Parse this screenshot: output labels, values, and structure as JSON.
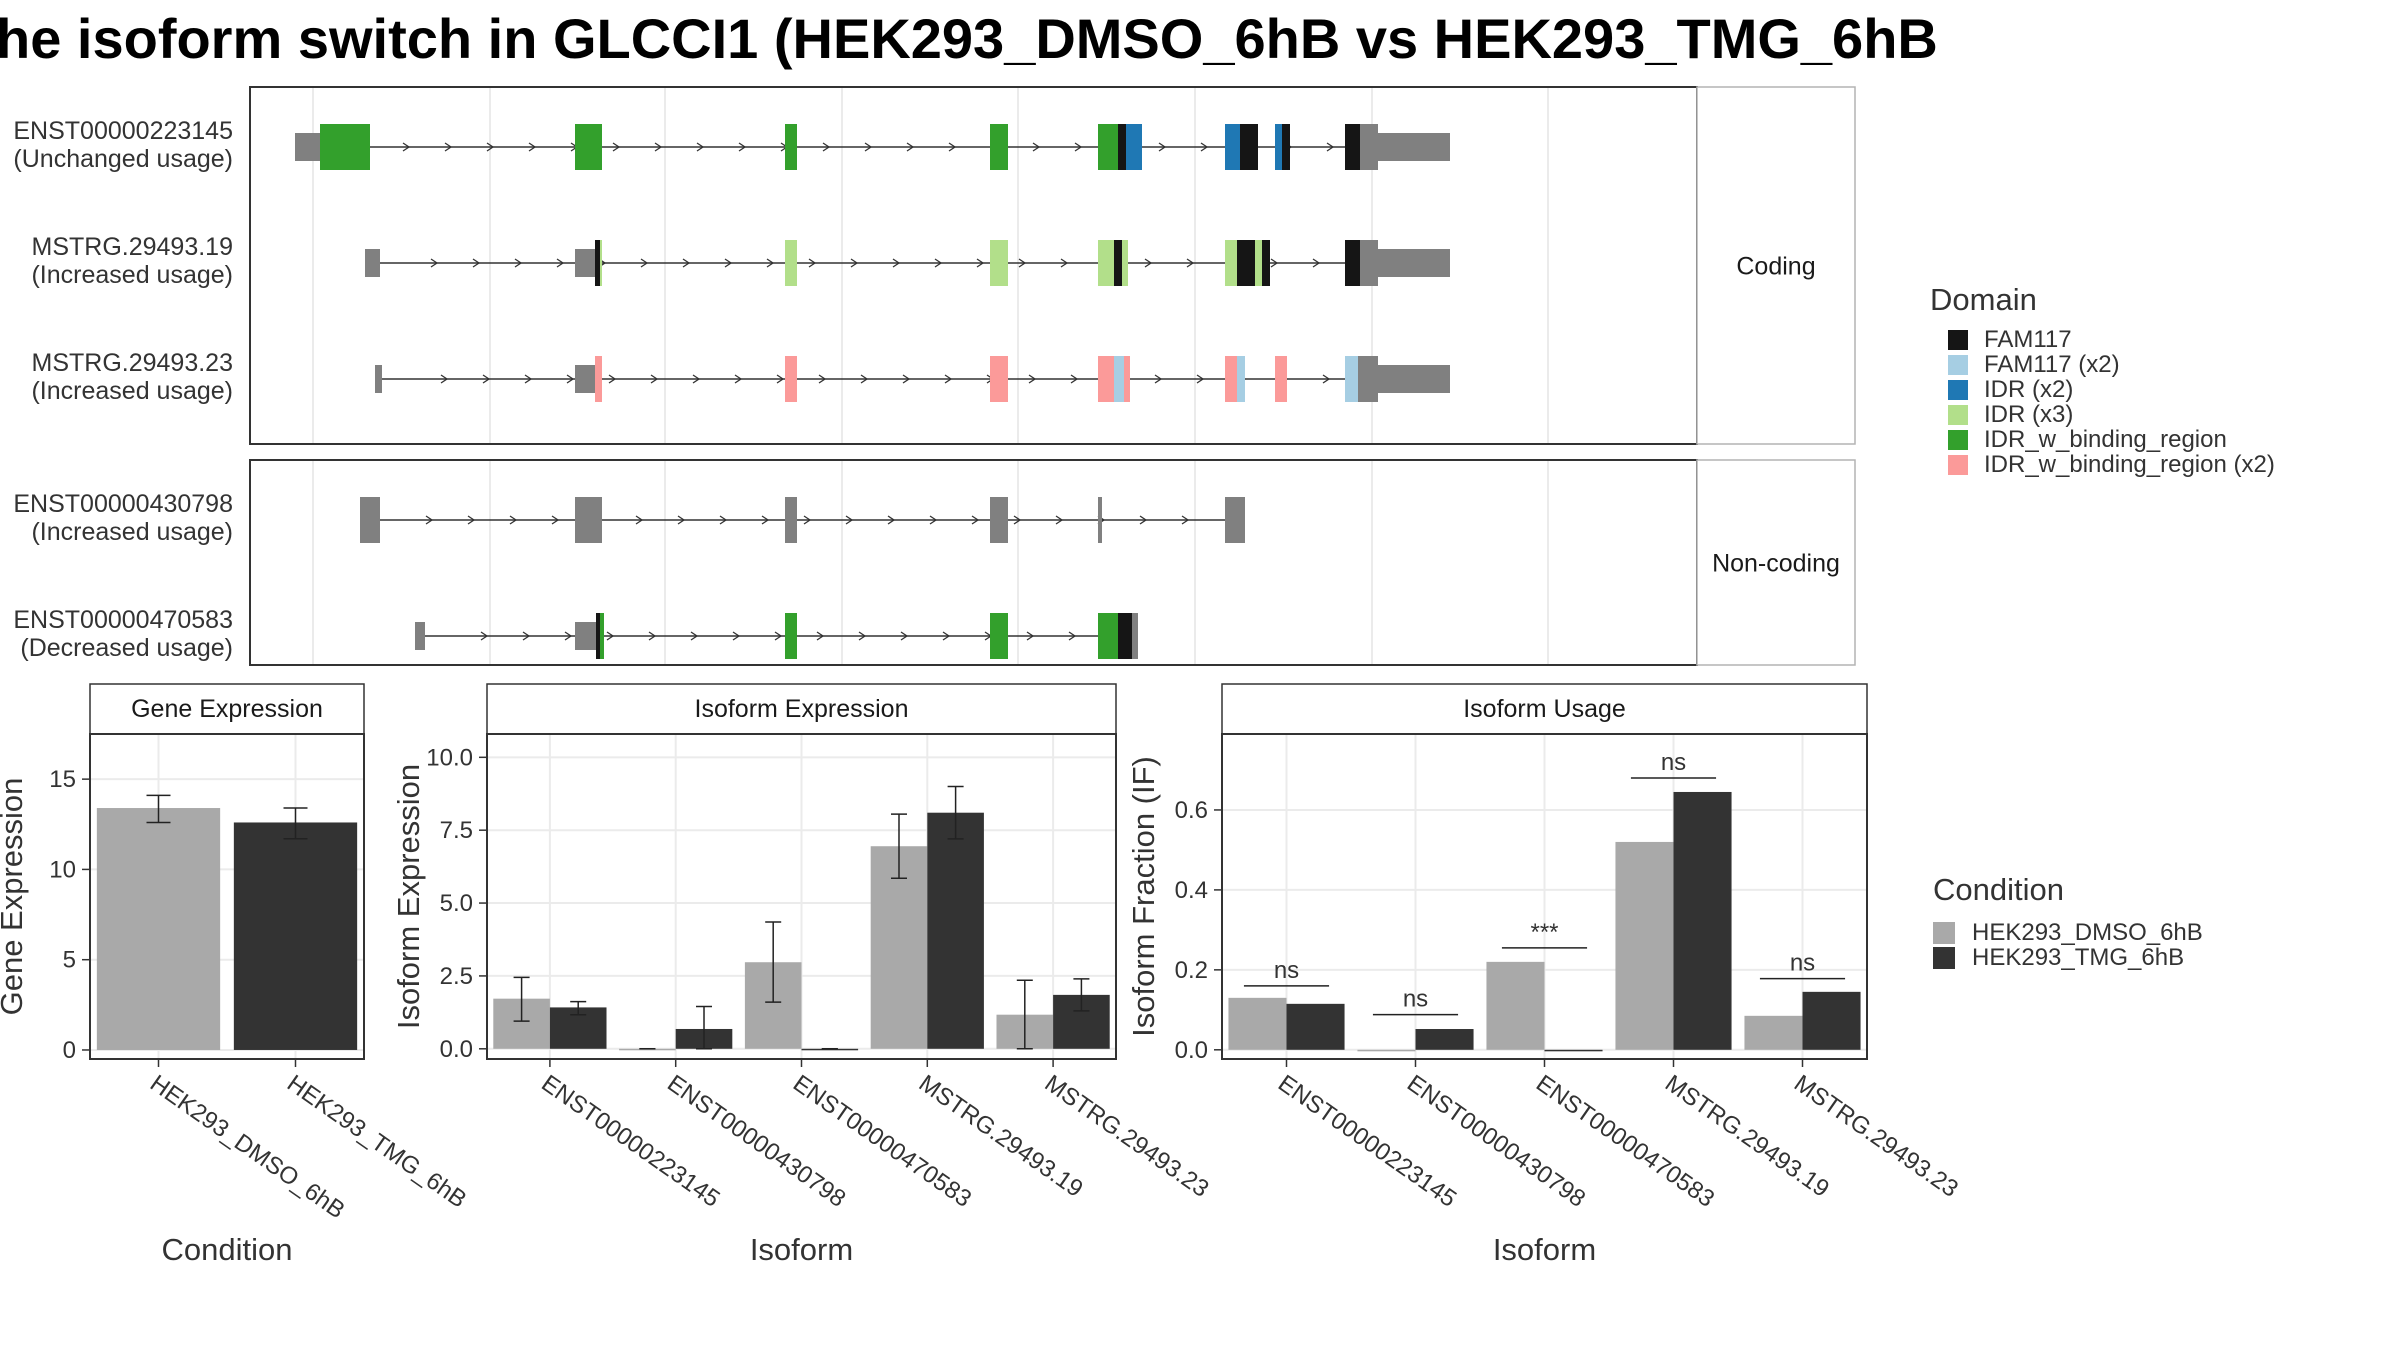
{
  "title": "he isoform switch in GLCCI1 (HEK293_DMSO_6hB vs HEK293_TMG_6hB",
  "colors": {
    "utr": "#808080",
    "FAM117": "#151515",
    "FAM117 (x2)": "#a6cee3",
    "IDR (x2)": "#1f78b4",
    "IDR (x3)": "#b2df8a",
    "IDR_w_binding_region": "#33a02c",
    "IDR_w_binding_region (x2)": "#fb9a99",
    "HEK293_DMSO_6hB": "#a9a9a9",
    "HEK293_TMG_6hB": "#333333",
    "panel_border": "#333333",
    "strip_fill": "#ffffff",
    "grid": "#ebebeb"
  },
  "chart_data": [
    {
      "type": "gene-structure",
      "facets": [
        {
          "strip": "Coding",
          "tracks": [
            {
              "label": [
                "ENST00000223145",
                "(Unchanged usage)"
              ],
              "span": [
                45,
                1000
              ],
              "exons": [
                {
                  "s": 45,
                  "e": 70,
                  "h": "s",
                  "c": "utr"
                },
                {
                  "s": 70,
                  "e": 120,
                  "h": "t",
                  "c": "IDR_w_binding_region"
                },
                {
                  "s": 325,
                  "e": 352,
                  "h": "t",
                  "c": "IDR_w_binding_region"
                },
                {
                  "s": 535,
                  "e": 547,
                  "h": "t",
                  "c": "IDR_w_binding_region"
                },
                {
                  "s": 740,
                  "e": 758,
                  "h": "t",
                  "c": "IDR_w_binding_region"
                },
                {
                  "s": 848,
                  "e": 868,
                  "h": "t",
                  "c": "IDR_w_binding_region"
                },
                {
                  "s": 868,
                  "e": 876,
                  "h": "t",
                  "c": "FAM117"
                },
                {
                  "s": 876,
                  "e": 892,
                  "h": "t",
                  "c": "IDR (x2)"
                },
                {
                  "s": 975,
                  "e": 990,
                  "h": "t",
                  "c": "IDR (x2)"
                },
                {
                  "s": 990,
                  "e": 1008,
                  "h": "t",
                  "c": "FAM117"
                },
                {
                  "s": 1025,
                  "e": 1032,
                  "h": "t",
                  "c": "IDR (x2)"
                },
                {
                  "s": 1032,
                  "e": 1040,
                  "h": "t",
                  "c": "FAM117"
                },
                {
                  "s": 1095,
                  "e": 1110,
                  "h": "t",
                  "c": "FAM117"
                },
                {
                  "s": 1110,
                  "e": 1128,
                  "h": "t",
                  "c": "utr"
                },
                {
                  "s": 1128,
                  "e": 1200,
                  "h": "s",
                  "c": "utr"
                }
              ]
            },
            {
              "label": [
                "MSTRG.29493.19",
                "(Increased usage)"
              ],
              "span": [
                115,
                1000
              ],
              "exons": [
                {
                  "s": 115,
                  "e": 130,
                  "h": "s",
                  "c": "utr"
                },
                {
                  "s": 325,
                  "e": 345,
                  "h": "s",
                  "c": "utr"
                },
                {
                  "s": 345,
                  "e": 350,
                  "h": "t",
                  "c": "FAM117"
                },
                {
                  "s": 350,
                  "e": 352,
                  "h": "t",
                  "c": "IDR (x3)"
                },
                {
                  "s": 535,
                  "e": 547,
                  "h": "t",
                  "c": "IDR (x3)"
                },
                {
                  "s": 740,
                  "e": 758,
                  "h": "t",
                  "c": "IDR (x3)"
                },
                {
                  "s": 848,
                  "e": 864,
                  "h": "t",
                  "c": "IDR (x3)"
                },
                {
                  "s": 864,
                  "e": 872,
                  "h": "t",
                  "c": "FAM117"
                },
                {
                  "s": 872,
                  "e": 878,
                  "h": "t",
                  "c": "IDR (x3)"
                },
                {
                  "s": 975,
                  "e": 987,
                  "h": "t",
                  "c": "IDR (x3)"
                },
                {
                  "s": 987,
                  "e": 1005,
                  "h": "t",
                  "c": "FAM117"
                },
                {
                  "s": 1005,
                  "e": 1012,
                  "h": "t",
                  "c": "IDR (x3)"
                },
                {
                  "s": 1012,
                  "e": 1020,
                  "h": "t",
                  "c": "FAM117"
                },
                {
                  "s": 1095,
                  "e": 1110,
                  "h": "t",
                  "c": "FAM117"
                },
                {
                  "s": 1110,
                  "e": 1128,
                  "h": "t",
                  "c": "utr"
                },
                {
                  "s": 1128,
                  "e": 1200,
                  "h": "s",
                  "c": "utr"
                }
              ]
            },
            {
              "label": [
                "MSTRG.29493.23",
                "(Increased usage)"
              ],
              "span": [
                125,
                1000
              ],
              "exons": [
                {
                  "s": 125,
                  "e": 132,
                  "h": "s",
                  "c": "utr"
                },
                {
                  "s": 325,
                  "e": 345,
                  "h": "s",
                  "c": "utr"
                },
                {
                  "s": 345,
                  "e": 352,
                  "h": "t",
                  "c": "IDR_w_binding_region (x2)"
                },
                {
                  "s": 535,
                  "e": 547,
                  "h": "t",
                  "c": "IDR_w_binding_region (x2)"
                },
                {
                  "s": 740,
                  "e": 758,
                  "h": "t",
                  "c": "IDR_w_binding_region (x2)"
                },
                {
                  "s": 848,
                  "e": 864,
                  "h": "t",
                  "c": "IDR_w_binding_region (x2)"
                },
                {
                  "s": 864,
                  "e": 874,
                  "h": "t",
                  "c": "FAM117 (x2)"
                },
                {
                  "s": 874,
                  "e": 880,
                  "h": "t",
                  "c": "IDR_w_binding_region (x2)"
                },
                {
                  "s": 1025,
                  "e": 1037,
                  "h": "t",
                  "c": "IDR_w_binding_region (x2)"
                },
                {
                  "s": 975,
                  "e": 987,
                  "h": "t",
                  "c": "IDR_w_binding_region (x2)"
                },
                {
                  "s": 987,
                  "e": 995,
                  "h": "t",
                  "c": "FAM117 (x2)"
                },
                {
                  "s": 1095,
                  "e": 1108,
                  "h": "t",
                  "c": "FAM117 (x2)"
                },
                {
                  "s": 1108,
                  "e": 1128,
                  "h": "t",
                  "c": "utr"
                },
                {
                  "s": 1128,
                  "e": 1200,
                  "h": "s",
                  "c": "utr"
                }
              ]
            }
          ]
        },
        {
          "strip": "Non-coding",
          "tracks": [
            {
              "label": [
                "ENST00000430798",
                "(Increased usage)"
              ],
              "span": [
                110,
                1000
              ],
              "exons": [
                {
                  "s": 110,
                  "e": 130,
                  "h": "t",
                  "c": "utr"
                },
                {
                  "s": 325,
                  "e": 352,
                  "h": "t",
                  "c": "utr"
                },
                {
                  "s": 535,
                  "e": 547,
                  "h": "t",
                  "c": "utr"
                },
                {
                  "s": 740,
                  "e": 758,
                  "h": "t",
                  "c": "utr"
                },
                {
                  "s": 848,
                  "e": 852,
                  "h": "t",
                  "c": "utr"
                },
                {
                  "s": 975,
                  "e": 995,
                  "h": "t",
                  "c": "utr"
                }
              ]
            },
            {
              "label": [
                "ENST00000470583",
                "(Decreased usage)"
              ],
              "span": [
                165,
                1000
              ],
              "exons": [
                {
                  "s": 165,
                  "e": 175,
                  "h": "s",
                  "c": "utr"
                },
                {
                  "s": 325,
                  "e": 346,
                  "h": "s",
                  "c": "utr"
                },
                {
                  "s": 346,
                  "e": 350,
                  "h": "t",
                  "c": "FAM117"
                },
                {
                  "s": 350,
                  "e": 354,
                  "h": "t",
                  "c": "IDR_w_binding_region"
                },
                {
                  "s": 535,
                  "e": 547,
                  "h": "t",
                  "c": "IDR_w_binding_region"
                },
                {
                  "s": 740,
                  "e": 758,
                  "h": "t",
                  "c": "IDR_w_binding_region"
                },
                {
                  "s": 848,
                  "e": 868,
                  "h": "t",
                  "c": "IDR_w_binding_region"
                },
                {
                  "s": 868,
                  "e": 882,
                  "h": "t",
                  "c": "FAM117"
                },
                {
                  "s": 882,
                  "e": 888,
                  "h": "t",
                  "c": "utr"
                }
              ]
            }
          ]
        }
      ],
      "legend": {
        "title": "Domain",
        "items": [
          "FAM117",
          "FAM117 (x2)",
          "IDR (x2)",
          "IDR (x3)",
          "IDR_w_binding_region",
          "IDR_w_binding_region (x2)"
        ]
      }
    },
    {
      "type": "bar",
      "strip": "Gene Expression",
      "xlabel": "Condition",
      "ylabel": "Gene Expression",
      "ylim": [
        -0.5,
        17.5
      ],
      "yticks": [
        0,
        5,
        10,
        15
      ],
      "categories": [
        "HEK293_DMSO_6hB",
        "HEK293_TMG_6hB"
      ],
      "values": [
        13.4,
        12.6
      ],
      "errors": [
        [
          12.6,
          14.1
        ],
        [
          11.7,
          13.4
        ]
      ]
    },
    {
      "type": "bar",
      "strip": "Isoform Expression",
      "xlabel": "Isoform",
      "ylabel": "Isoform Expression",
      "ylim": [
        -0.35,
        10.8
      ],
      "yticks": [
        "0.0",
        "2.5",
        "5.0",
        "7.5",
        "10.0"
      ],
      "categories": [
        "ENST00000223145",
        "ENST00000430798",
        "ENST00000470583",
        "MSTRG.29493.19",
        "MSTRG.29493.23"
      ],
      "series": [
        {
          "name": "HEK293_DMSO_6hB",
          "values": [
            1.72,
            0.0,
            2.97,
            6.95,
            1.17
          ],
          "errors": [
            [
              0.95,
              2.45
            ],
            [
              0.0,
              0.0
            ],
            [
              1.6,
              4.35
            ],
            [
              5.85,
              8.05
            ],
            [
              0.0,
              2.35
            ]
          ]
        },
        {
          "name": "HEK293_TMG_6hB",
          "values": [
            1.42,
            0.68,
            0.0,
            8.1,
            1.85
          ],
          "errors": [
            [
              1.17,
              1.62
            ],
            [
              0.0,
              1.45
            ],
            [
              0.0,
              0.0
            ],
            [
              7.2,
              9.0
            ],
            [
              1.3,
              2.4
            ]
          ]
        }
      ]
    },
    {
      "type": "bar",
      "strip": "Isoform Usage",
      "xlabel": "Isoform",
      "ylabel": "Isoform Fraction (IF)",
      "ylim": [
        -0.023,
        0.79
      ],
      "yticks": [
        "0.0",
        "0.2",
        "0.4",
        "0.6"
      ],
      "categories": [
        "ENST00000223145",
        "ENST00000430798",
        "ENST00000470583",
        "MSTRG.29493.19",
        "MSTRG.29493.23"
      ],
      "series": [
        {
          "name": "HEK293_DMSO_6hB",
          "values": [
            0.13,
            0.0,
            0.22,
            0.52,
            0.085
          ]
        },
        {
          "name": "HEK293_TMG_6hB",
          "values": [
            0.115,
            0.052,
            0.0,
            0.645,
            0.145
          ]
        }
      ],
      "significance": [
        {
          "label": "ns",
          "y": 0.16
        },
        {
          "label": "ns",
          "y": 0.088
        },
        {
          "label": "***",
          "y": 0.255
        },
        {
          "label": "ns",
          "y": 0.68
        },
        {
          "label": "ns",
          "y": 0.178
        }
      ],
      "legend": {
        "title": "Condition",
        "items": [
          "HEK293_DMSO_6hB",
          "HEK293_TMG_6hB"
        ]
      }
    }
  ]
}
